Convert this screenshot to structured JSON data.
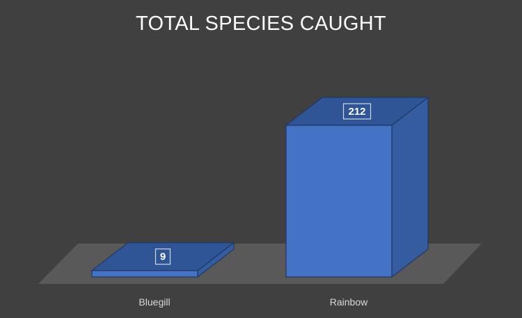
{
  "chart_data": {
    "type": "bar",
    "title": "TOTAL SPECIES CAUGHT",
    "categories": [
      "Bluegill",
      "Rainbow"
    ],
    "values": [
      9,
      212
    ],
    "data_labels": [
      "9",
      "212"
    ],
    "ylim": [
      0,
      212
    ],
    "grid": false,
    "legend": "none",
    "style": "3d-column",
    "colors": {
      "background": "#404040",
      "floor": "#595959",
      "bar_front": "#4472c4",
      "bar_top": "#2f5597",
      "bar_side": "#345c9f",
      "bar_edge": "#203864",
      "title_text": "#ffffff",
      "axis_text": "#d9d9d9"
    }
  }
}
